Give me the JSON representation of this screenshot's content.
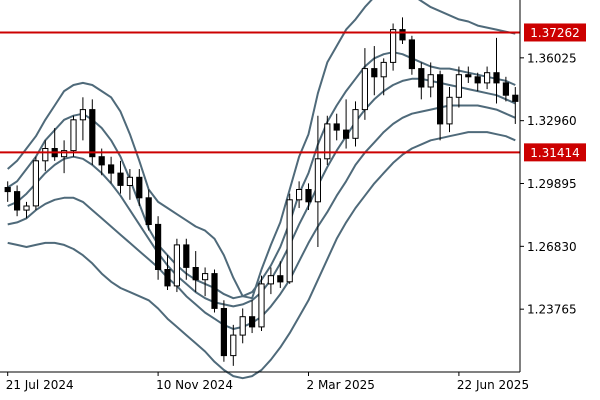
{
  "chart_data": {
    "type": "candlestick",
    "title": "",
    "xlabel": "",
    "ylabel": "",
    "ylim": [
      1.207,
      1.387
    ],
    "y_ticks": [
      "1.36025",
      "1.32960",
      "1.29895",
      "1.26830",
      "1.23765"
    ],
    "x_ticks": [
      {
        "label": "21 Jul 2024",
        "index": 0
      },
      {
        "label": "10 Nov 2024",
        "index": 16
      },
      {
        "label": "2 Mar 2025",
        "index": 32
      },
      {
        "label": "22 Jun 2025",
        "index": 48
      }
    ],
    "horizontal_lines": [
      {
        "value": 1.37262,
        "label": "1.37262",
        "color": "#cc0000"
      },
      {
        "value": 1.31414,
        "label": "1.31414",
        "color": "#cc0000"
      }
    ],
    "colors": {
      "bull": "#ffffff",
      "bear": "#000000",
      "outline": "#000000",
      "band": "#4f6a7a",
      "hline": "#cc0000",
      "axis": "#000000"
    },
    "candles": [
      [
        1.297,
        1.3,
        1.29,
        1.295
      ],
      [
        1.295,
        1.298,
        1.283,
        1.286
      ],
      [
        1.286,
        1.29,
        1.282,
        1.288
      ],
      [
        1.288,
        1.312,
        1.286,
        1.31
      ],
      [
        1.31,
        1.32,
        1.305,
        1.316
      ],
      [
        1.316,
        1.326,
        1.31,
        1.312
      ],
      [
        1.312,
        1.32,
        1.304,
        1.315
      ],
      [
        1.315,
        1.332,
        1.312,
        1.33
      ],
      [
        1.33,
        1.341,
        1.32,
        1.335
      ],
      [
        1.335,
        1.34,
        1.308,
        1.312
      ],
      [
        1.312,
        1.316,
        1.303,
        1.308
      ],
      [
        1.308,
        1.312,
        1.299,
        1.304
      ],
      [
        1.304,
        1.31,
        1.294,
        1.298
      ],
      [
        1.298,
        1.306,
        1.291,
        1.302
      ],
      [
        1.302,
        1.306,
        1.288,
        1.292
      ],
      [
        1.292,
        1.296,
        1.276,
        1.279
      ],
      [
        1.279,
        1.283,
        1.252,
        1.257
      ],
      [
        1.257,
        1.264,
        1.247,
        1.249
      ],
      [
        1.249,
        1.272,
        1.246,
        1.269
      ],
      [
        1.269,
        1.272,
        1.252,
        1.258
      ],
      [
        1.258,
        1.266,
        1.246,
        1.252
      ],
      [
        1.252,
        1.258,
        1.244,
        1.255
      ],
      [
        1.255,
        1.257,
        1.236,
        1.238
      ],
      [
        1.238,
        1.242,
        1.212,
        1.215
      ],
      [
        1.215,
        1.23,
        1.21,
        1.225
      ],
      [
        1.225,
        1.238,
        1.221,
        1.234
      ],
      [
        1.234,
        1.242,
        1.226,
        1.229
      ],
      [
        1.229,
        1.254,
        1.227,
        1.25
      ],
      [
        1.25,
        1.258,
        1.245,
        1.254
      ],
      [
        1.254,
        1.261,
        1.248,
        1.251
      ],
      [
        1.251,
        1.294,
        1.25,
        1.291
      ],
      [
        1.291,
        1.3,
        1.287,
        1.296
      ],
      [
        1.296,
        1.299,
        1.286,
        1.29
      ],
      [
        1.29,
        1.332,
        1.268,
        1.311
      ],
      [
        1.311,
        1.332,
        1.308,
        1.328
      ],
      [
        1.328,
        1.333,
        1.32,
        1.325
      ],
      [
        1.325,
        1.34,
        1.316,
        1.321
      ],
      [
        1.321,
        1.339,
        1.317,
        1.335
      ],
      [
        1.335,
        1.365,
        1.33,
        1.355
      ],
      [
        1.355,
        1.366,
        1.342,
        1.351
      ],
      [
        1.351,
        1.36,
        1.342,
        1.358
      ],
      [
        1.358,
        1.377,
        1.354,
        1.374
      ],
      [
        1.374,
        1.38,
        1.367,
        1.369
      ],
      [
        1.369,
        1.371,
        1.352,
        1.355
      ],
      [
        1.355,
        1.358,
        1.34,
        1.346
      ],
      [
        1.346,
        1.358,
        1.341,
        1.352
      ],
      [
        1.352,
        1.354,
        1.32,
        1.328
      ],
      [
        1.328,
        1.346,
        1.324,
        1.341
      ],
      [
        1.341,
        1.356,
        1.336,
        1.352
      ],
      [
        1.352,
        1.356,
        1.348,
        1.351
      ],
      [
        1.351,
        1.353,
        1.344,
        1.348
      ],
      [
        1.348,
        1.356,
        1.345,
        1.353
      ],
      [
        1.353,
        1.37,
        1.338,
        1.348
      ],
      [
        1.348,
        1.351,
        1.339,
        1.342
      ],
      [
        1.342,
        1.346,
        1.328,
        1.339
      ]
    ],
    "bands": {
      "outer_upper": [
        1.306,
        1.31,
        1.316,
        1.322,
        1.33,
        1.337,
        1.344,
        1.347,
        1.348,
        1.347,
        1.344,
        1.341,
        1.334,
        1.323,
        1.31,
        1.296,
        1.29,
        1.287,
        1.284,
        1.281,
        1.278,
        1.276,
        1.272,
        1.264,
        1.253,
        1.244,
        1.243,
        1.257,
        1.269,
        1.28,
        1.296,
        1.312,
        1.323,
        1.343,
        1.358,
        1.366,
        1.374,
        1.379,
        1.385,
        1.39,
        1.391,
        1.392,
        1.392,
        1.391,
        1.388,
        1.385,
        1.383,
        1.381,
        1.379,
        1.378,
        1.376,
        1.375,
        1.374,
        1.373,
        1.372
      ],
      "inner_upper": [
        1.297,
        1.3,
        1.306,
        1.312,
        1.32,
        1.325,
        1.33,
        1.332,
        1.333,
        1.33,
        1.326,
        1.32,
        1.312,
        1.301,
        1.289,
        1.277,
        1.269,
        1.264,
        1.259,
        1.255,
        1.252,
        1.25,
        1.248,
        1.245,
        1.243,
        1.244,
        1.246,
        1.252,
        1.259,
        1.268,
        1.28,
        1.294,
        1.304,
        1.318,
        1.329,
        1.337,
        1.344,
        1.35,
        1.356,
        1.36,
        1.362,
        1.363,
        1.362,
        1.36,
        1.358,
        1.356,
        1.355,
        1.355,
        1.354,
        1.353,
        1.352,
        1.351,
        1.35,
        1.349,
        1.347
      ],
      "middle": [
        1.288,
        1.29,
        1.294,
        1.299,
        1.304,
        1.308,
        1.311,
        1.312,
        1.311,
        1.308,
        1.304,
        1.299,
        1.293,
        1.286,
        1.279,
        1.272,
        1.265,
        1.259,
        1.254,
        1.25,
        1.246,
        1.243,
        1.241,
        1.24,
        1.239,
        1.24,
        1.242,
        1.246,
        1.252,
        1.26,
        1.269,
        1.279,
        1.288,
        1.298,
        1.307,
        1.315,
        1.322,
        1.329,
        1.335,
        1.34,
        1.344,
        1.347,
        1.349,
        1.35,
        1.35,
        1.349,
        1.348,
        1.347,
        1.346,
        1.345,
        1.344,
        1.343,
        1.342,
        1.34,
        1.338
      ],
      "inner_lower": [
        1.279,
        1.28,
        1.282,
        1.286,
        1.289,
        1.291,
        1.292,
        1.292,
        1.29,
        1.286,
        1.282,
        1.278,
        1.274,
        1.27,
        1.266,
        1.262,
        1.258,
        1.253,
        1.249,
        1.244,
        1.24,
        1.236,
        1.233,
        1.23,
        1.228,
        1.229,
        1.231,
        1.234,
        1.239,
        1.245,
        1.252,
        1.261,
        1.27,
        1.278,
        1.285,
        1.293,
        1.3,
        1.308,
        1.314,
        1.319,
        1.324,
        1.328,
        1.331,
        1.333,
        1.334,
        1.335,
        1.336,
        1.337,
        1.337,
        1.337,
        1.337,
        1.336,
        1.335,
        1.333,
        1.331
      ],
      "outer_lower": [
        1.27,
        1.269,
        1.268,
        1.269,
        1.27,
        1.27,
        1.269,
        1.267,
        1.264,
        1.26,
        1.255,
        1.251,
        1.248,
        1.246,
        1.244,
        1.242,
        1.238,
        1.233,
        1.229,
        1.225,
        1.221,
        1.217,
        1.212,
        1.208,
        1.205,
        1.204,
        1.205,
        1.208,
        1.213,
        1.219,
        1.226,
        1.234,
        1.242,
        1.252,
        1.262,
        1.272,
        1.28,
        1.287,
        1.293,
        1.299,
        1.304,
        1.309,
        1.313,
        1.316,
        1.318,
        1.32,
        1.321,
        1.322,
        1.323,
        1.324,
        1.324,
        1.324,
        1.323,
        1.322,
        1.32
      ]
    }
  }
}
